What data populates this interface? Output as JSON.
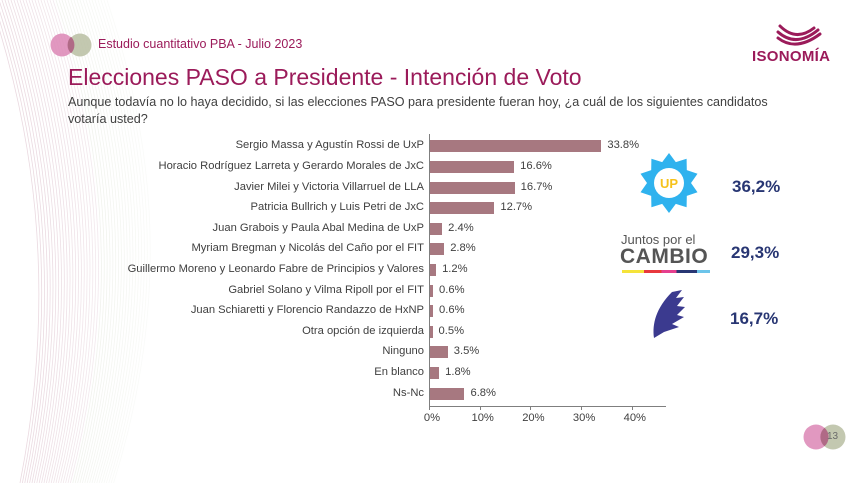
{
  "header": {
    "study": "Estudio cuantitativo PBA - Julio 2023",
    "brand": "ISONOMÍA",
    "title": "Elecciones PASO a Presidente - Intención de Voto",
    "subtitle": "Aunque todavía no lo haya decidido, si las elecciones PASO para presidente fueran hoy, ¿a cuál de los siguientes candidatos votaría usted?"
  },
  "colors": {
    "brand": "#9b1b5a",
    "bar": "#a77880",
    "party_pct": "#283673",
    "up_star": "#2fb2ee",
    "up_text": "#f6c21b",
    "lla": "#3b3a8f"
  },
  "chart_data": {
    "type": "bar",
    "orientation": "horizontal",
    "title": "Elecciones PASO a Presidente - Intención de Voto",
    "xlabel": "",
    "ylabel": "",
    "xlim": [
      0,
      46
    ],
    "grid": false,
    "categories": [
      "Sergio Massa y Agustín Rossi de UxP",
      "Horacio Rodríguez Larreta y Gerardo Morales de JxC",
      "Javier Milei y Victoria Villarruel de LLA",
      "Patricia Bullrich y Luis Petri de JxC",
      "Juan Grabois y Paula Abal Medina de UxP",
      "Myriam Bregman y Nicolás del Caño por el FIT",
      "Guillermo Moreno y Leonardo Fabre de Principios y Valores",
      "Gabriel Solano y Vilma Ripoll por el FIT",
      "Juan Schiaretti y Florencio Randazzo de HxNP",
      "Otra opción de izquierda",
      "Ninguno",
      "En blanco",
      "Ns-Nc"
    ],
    "values": [
      33.8,
      16.6,
      16.7,
      12.7,
      2.4,
      2.8,
      1.2,
      0.6,
      0.6,
      0.5,
      3.5,
      1.8,
      6.8
    ],
    "value_labels": [
      "33.8%",
      "16.6%",
      "16.7%",
      "12.7%",
      "2.4%",
      "2.8%",
      "1.2%",
      "0.6%",
      "0.6%",
      "0.5%",
      "3.5%",
      "1.8%",
      "6.8%"
    ],
    "x_ticks": [
      0,
      10,
      20,
      30,
      40
    ],
    "x_tick_labels": [
      "0%",
      "10%",
      "20%",
      "30%",
      "40%"
    ]
  },
  "parties": [
    {
      "name": "Unión por la Patria",
      "logo_text": "UP",
      "percent": "36,2%"
    },
    {
      "name": "Juntos por el Cambio",
      "logo_text_top": "Juntos por el",
      "logo_text_bottom": "CAMBIO",
      "percent": "29,3%"
    },
    {
      "name": "La Libertad Avanza",
      "percent": "16,7%"
    }
  ],
  "footer": {
    "page_number": "13"
  }
}
